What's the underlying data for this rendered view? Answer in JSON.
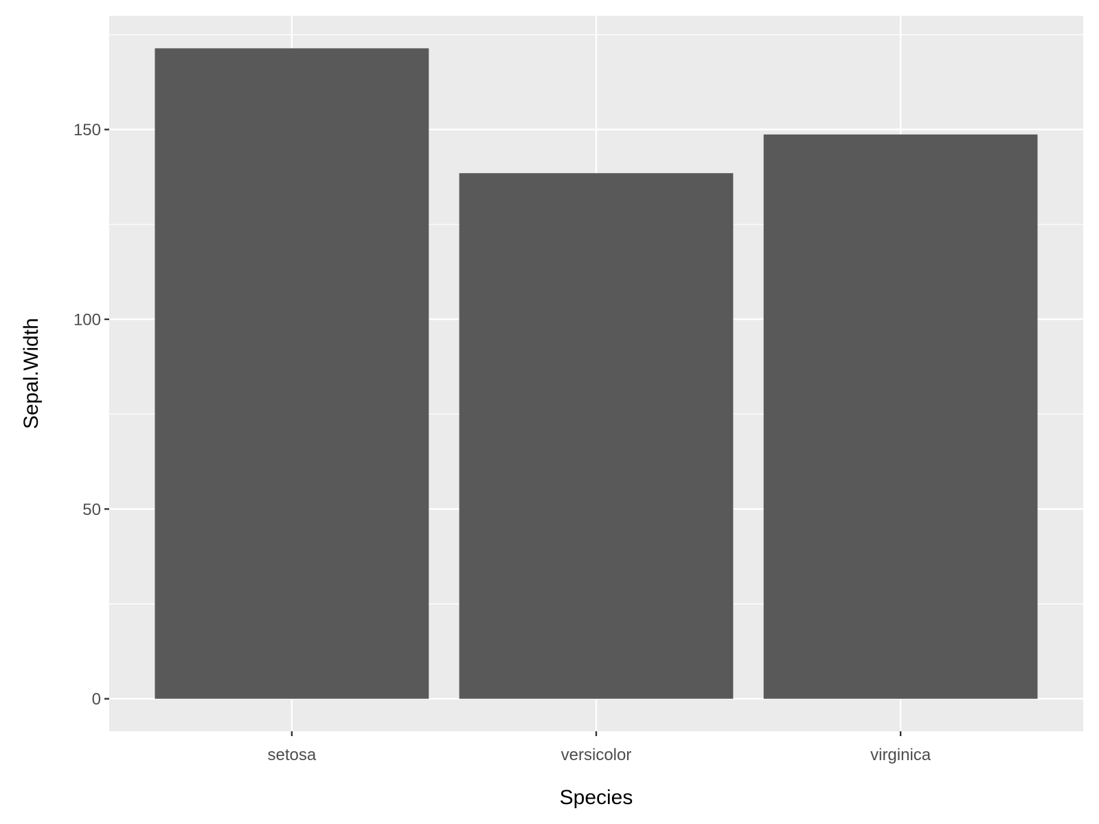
{
  "chart_data": {
    "type": "bar",
    "title": "",
    "xlabel": "Species",
    "ylabel": "Sepal.Width",
    "categories": [
      "setosa",
      "versicolor",
      "virginica"
    ],
    "values": [
      171.4,
      138.5,
      148.7
    ],
    "ylim": [
      -8.57,
      179.97
    ],
    "yticks": [
      0,
      50,
      100,
      150
    ],
    "ytick_labels": [
      "0",
      "50",
      "100",
      "150"
    ],
    "grid": true,
    "legend": "none",
    "colors": {
      "bar": "#595959",
      "panel": "#ebebeb",
      "grid": "#ffffff"
    }
  }
}
